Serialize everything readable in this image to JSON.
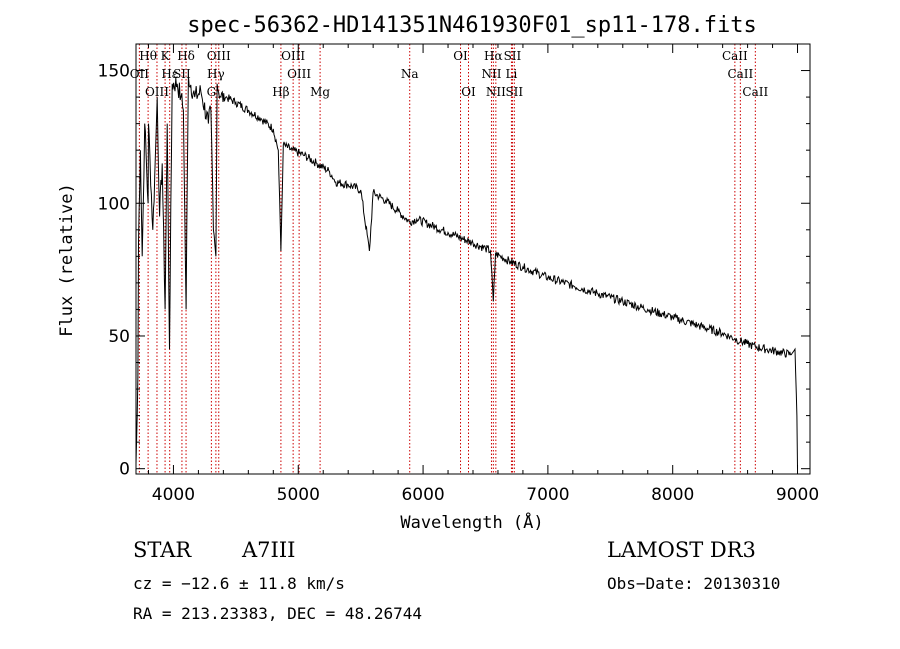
{
  "chart_data": {
    "type": "line",
    "title": "spec-56362-HD141351N461930F01_sp11-178.fits",
    "xlabel": "Wavelength (Å)",
    "ylabel": "Flux (relative)",
    "xlim": [
      3700,
      9100
    ],
    "ylim": [
      -2,
      160
    ],
    "xticks": [
      4000,
      5000,
      6000,
      7000,
      8000,
      9000
    ],
    "xtick_labels": [
      "4000",
      "5000",
      "6000",
      "7000",
      "8000",
      "9000"
    ],
    "yticks": [
      0,
      50,
      100,
      150
    ],
    "ytick_labels": [
      "0",
      "50",
      "100",
      "150"
    ],
    "grid": false,
    "series": [
      {
        "name": "spectrum",
        "x": [
          3700,
          3710,
          3715,
          3720,
          3735,
          3750,
          3770,
          3797,
          3800,
          3835,
          3850,
          3870,
          3889,
          3910,
          3933,
          3950,
          3968,
          3990,
          4030,
          4060,
          4080,
          4101,
          4120,
          4170,
          4220,
          4280,
          4300,
          4320,
          4340,
          4350,
          4380,
          4420,
          4500,
          4600,
          4700,
          4800,
          4840,
          4861,
          4880,
          4950,
          5050,
          5150,
          5250,
          5300,
          5400,
          5500,
          5570,
          5600,
          5700,
          5800,
          5890,
          5950,
          6100,
          6200,
          6300,
          6400,
          6500,
          6540,
          6563,
          6580,
          6620,
          6700,
          6800,
          7000,
          7200,
          7400,
          7600,
          7800,
          8000,
          8200,
          8400,
          8498,
          8542,
          8600,
          8662,
          8750,
          8850,
          8950,
          8980,
          8995,
          9000
        ],
        "y": [
          2,
          20,
          35,
          85,
          120,
          80,
          130,
          100,
          130,
          90,
          110,
          140,
          95,
          115,
          60,
          130,
          45,
          145,
          145,
          140,
          135,
          60,
          148,
          140,
          142,
          130,
          135,
          90,
          80,
          145,
          140,
          140,
          138,
          135,
          132,
          128,
          120,
          82,
          122,
          120,
          118,
          115,
          112,
          108,
          107,
          105,
          82,
          104,
          101,
          97,
          93,
          94,
          91,
          89,
          87,
          85,
          83,
          82,
          63,
          81,
          80,
          78,
          76,
          72,
          69,
          66,
          63,
          60,
          57,
          54,
          51,
          49,
          48,
          47,
          46,
          45,
          44,
          43,
          45,
          20,
          0
        ]
      }
    ],
    "lines_top": [
      {
        "label": "Hθ",
        "x": 3797
      },
      {
        "label": "K",
        "x": 3933
      },
      {
        "label": "Hδ",
        "x": 4101
      },
      {
        "label": "OIII",
        "x": 4363
      },
      {
        "label": "OIII",
        "x": 4959
      },
      {
        "label": "OI",
        "x": 6300
      },
      {
        "label": "Hα",
        "x": 6563
      },
      {
        "label": "SII",
        "x": 6716
      },
      {
        "label": "CaII",
        "x": 8498
      }
    ],
    "lines_mid": [
      {
        "label": "OII",
        "x": 3727
      },
      {
        "label": "Hε",
        "x": 3970
      },
      {
        "label": "SII",
        "x": 4068
      },
      {
        "label": "Hγ",
        "x": 4340
      },
      {
        "label": "OIII",
        "x": 5007
      },
      {
        "label": "Na",
        "x": 5893
      },
      {
        "label": "NII",
        "x": 6548
      },
      {
        "label": "Li",
        "x": 6708
      },
      {
        "label": "CaII",
        "x": 8542
      }
    ],
    "lines_low": [
      {
        "label": "OIII",
        "x": 3868
      },
      {
        "label": "G",
        "x": 4304
      },
      {
        "label": "Hβ",
        "x": 4861
      },
      {
        "label": "Mg",
        "x": 5175
      },
      {
        "label": "OI",
        "x": 6364
      },
      {
        "label": "NII",
        "x": 6583
      },
      {
        "label": "SII",
        "x": 6731
      },
      {
        "label": "CaII",
        "x": 8662
      }
    ]
  },
  "info": {
    "object_class": "STAR",
    "subclass": "A7III",
    "survey": "LAMOST DR3",
    "cz": "cz = −12.6 ± 11.8 km/s",
    "obs_date": "Obs−Date: 20130310",
    "coords": "RA = 213.23383, DEC =  48.26744"
  },
  "colors": {
    "spectrum": "#000000",
    "line_marker": "#cc0000",
    "axes": "#000000"
  }
}
